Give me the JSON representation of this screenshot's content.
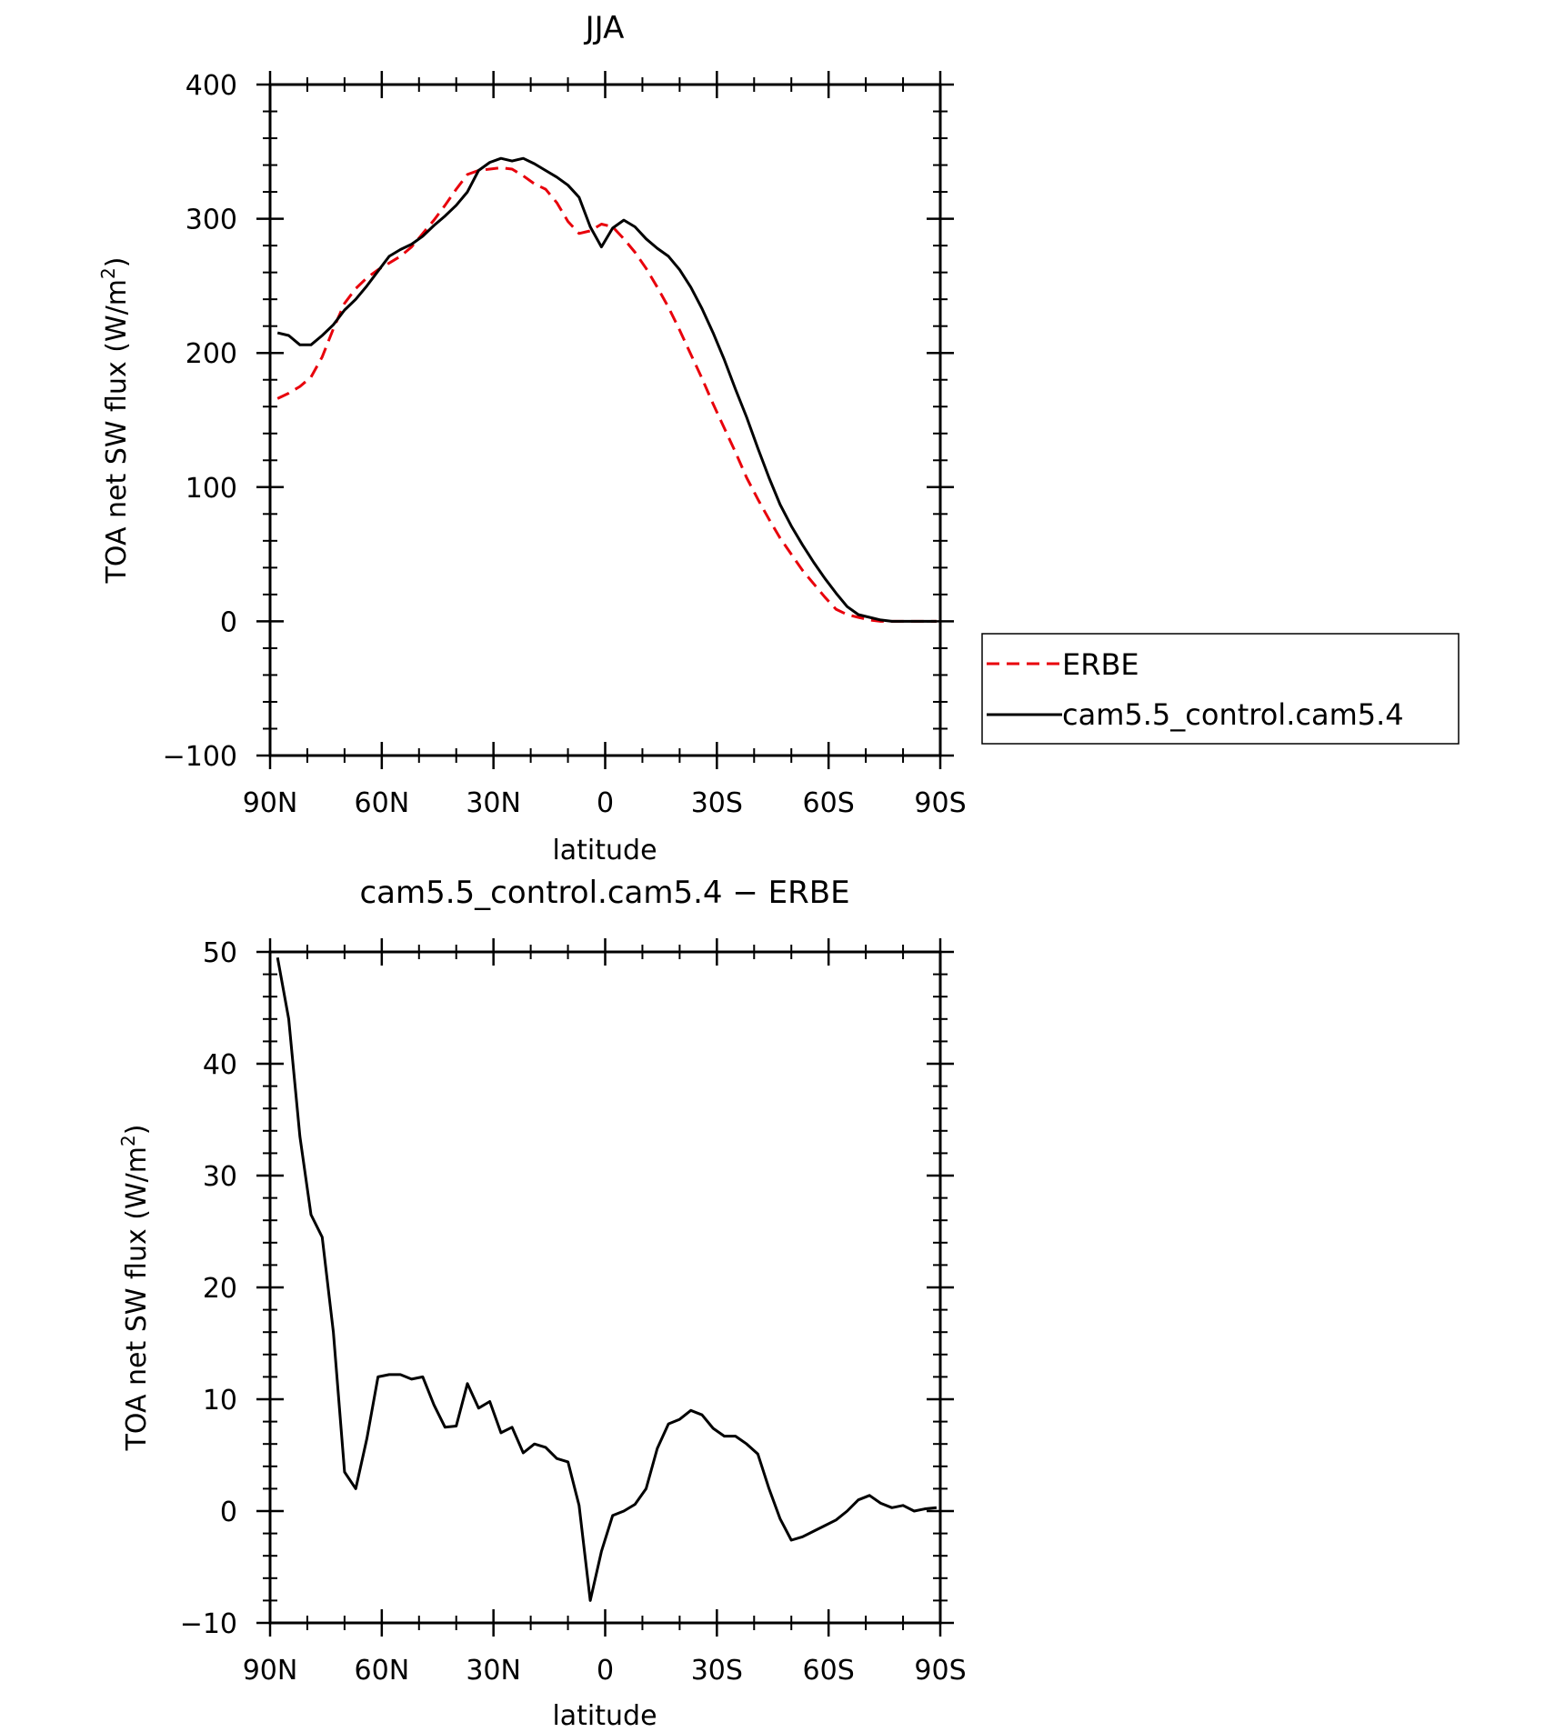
{
  "chart_data": [
    {
      "type": "line",
      "title": "JJA",
      "xlabel": "latitude",
      "ylabel": "TOA net SW flux (W/m²)",
      "ylabel_parts": {
        "main": "TOA net SW flux (W/m",
        "sup": "2",
        "end": ")"
      },
      "xlim": [
        90,
        -90
      ],
      "ylim": [
        -100,
        400
      ],
      "xticks": [
        90,
        60,
        30,
        0,
        -30,
        -60,
        -90
      ],
      "xtick_labels": [
        "90N",
        "60N",
        "30N",
        "0",
        "30S",
        "60S",
        "90S"
      ],
      "yticks": [
        -100,
        0,
        100,
        200,
        300,
        400
      ],
      "ytick_labels": [
        "−100",
        "0",
        "100",
        "200",
        "300",
        "400"
      ],
      "grid": false,
      "legend": "right-outside",
      "series": [
        {
          "name": "ERBE",
          "color": "#e8000b",
          "style": "dashed",
          "x": [
            88,
            85,
            82,
            79,
            76,
            73,
            70,
            67,
            64,
            61,
            58,
            55,
            52,
            49,
            46,
            43,
            40,
            37,
            34,
            31,
            28,
            25,
            22,
            19,
            16,
            13,
            10,
            7,
            4,
            1,
            -2,
            -5,
            -8,
            -11,
            -14,
            -17,
            -20,
            -23,
            -26,
            -29,
            -32,
            -35,
            -38,
            -41,
            -44,
            -47,
            -50,
            -53,
            -56,
            -59,
            -62,
            -65,
            -68,
            -71,
            -74,
            -77,
            -80,
            -83,
            -86,
            -89
          ],
          "y": [
            166,
            170,
            175,
            182,
            197,
            218,
            237,
            248,
            256,
            262,
            267,
            272,
            279,
            289,
            299,
            310,
            322,
            333,
            336,
            337,
            338,
            337,
            332,
            326,
            322,
            312,
            298,
            289,
            291,
            296,
            294,
            285,
            275,
            263,
            249,
            234,
            217,
            199,
            181,
            162,
            144,
            126,
            107,
            91,
            76,
            62,
            50,
            38,
            28,
            18,
            9,
            5,
            3,
            1,
            0,
            0,
            0,
            0,
            0,
            0
          ]
        },
        {
          "name": "cam5.5_control.cam5.4",
          "color": "#000000",
          "style": "solid",
          "x": [
            88,
            85,
            82,
            79,
            76,
            73,
            70,
            67,
            64,
            61,
            58,
            55,
            52,
            49,
            46,
            43,
            40,
            37,
            34,
            31,
            28,
            25,
            22,
            19,
            16,
            13,
            10,
            7,
            4,
            1,
            -2,
            -5,
            -8,
            -11,
            -14,
            -17,
            -20,
            -23,
            -26,
            -29,
            -32,
            -35,
            -38,
            -41,
            -44,
            -47,
            -50,
            -53,
            -56,
            -59,
            -62,
            -65,
            -68,
            -71,
            -74,
            -77,
            -80,
            -83,
            -86,
            -89
          ],
          "y": [
            215,
            213,
            206,
            206,
            213,
            221,
            232,
            240,
            250,
            261,
            272,
            277,
            281,
            287,
            295,
            302,
            310,
            320,
            336,
            342,
            345,
            343,
            345,
            341,
            336,
            331,
            325,
            316,
            294,
            279,
            293,
            299,
            294,
            285,
            278,
            272,
            262,
            249,
            233,
            215,
            195,
            173,
            152,
            129,
            107,
            87,
            71,
            57,
            44,
            32,
            21,
            11,
            5,
            3,
            1,
            0,
            0,
            0,
            0,
            0
          ]
        }
      ]
    },
    {
      "type": "line",
      "title": "cam5.5_control.cam5.4 − ERBE",
      "xlabel": "latitude",
      "ylabel": "TOA net SW flux (W/m²)",
      "ylabel_parts": {
        "main": "TOA net SW flux (W/m",
        "sup": "2",
        "end": ")"
      },
      "xlim": [
        90,
        -90
      ],
      "ylim": [
        -10,
        50
      ],
      "xticks": [
        90,
        60,
        30,
        0,
        -30,
        -60,
        -90
      ],
      "xtick_labels": [
        "90N",
        "60N",
        "30N",
        "0",
        "30S",
        "60S",
        "90S"
      ],
      "yticks": [
        -10,
        0,
        10,
        20,
        30,
        40,
        50
      ],
      "ytick_labels": [
        "−10",
        "0",
        "10",
        "20",
        "30",
        "40",
        "50"
      ],
      "grid": false,
      "series": [
        {
          "color": "#000000",
          "style": "solid",
          "x": [
            88,
            85,
            82,
            79,
            76,
            73,
            70,
            67,
            64,
            61,
            58,
            55,
            52,
            49,
            46,
            43,
            40,
            37,
            34,
            31,
            28,
            25,
            22,
            19,
            16,
            13,
            10,
            7,
            4,
            1,
            -2,
            -5,
            -8,
            -11,
            -14,
            -17,
            -20,
            -23,
            -26,
            -29,
            -32,
            -35,
            -38,
            -41,
            -44,
            -47,
            -50,
            -53,
            -56,
            -59,
            -62,
            -65,
            -68,
            -71,
            -74,
            -77,
            -80,
            -83,
            -86,
            -89
          ],
          "y": [
            49.5,
            44,
            33.5,
            26.5,
            24.5,
            16,
            3.5,
            2,
            6.5,
            12,
            12.2,
            12.2,
            11.8,
            12,
            9.5,
            7.5,
            7.6,
            11.4,
            9.2,
            9.8,
            7,
            7.5,
            5.2,
            6,
            5.7,
            4.7,
            4.4,
            0.5,
            -8,
            -3.6,
            -0.4,
            0,
            0.6,
            2,
            5.6,
            7.8,
            8.2,
            9,
            8.6,
            7.4,
            6.7,
            6.7,
            6,
            5.1,
            2,
            -0.7,
            -2.6,
            -2.3,
            -1.8,
            -1.3,
            -0.8,
            0,
            1,
            1.4,
            0.7,
            0.3,
            0.5,
            0,
            0.2,
            0.3
          ]
        }
      ]
    }
  ]
}
